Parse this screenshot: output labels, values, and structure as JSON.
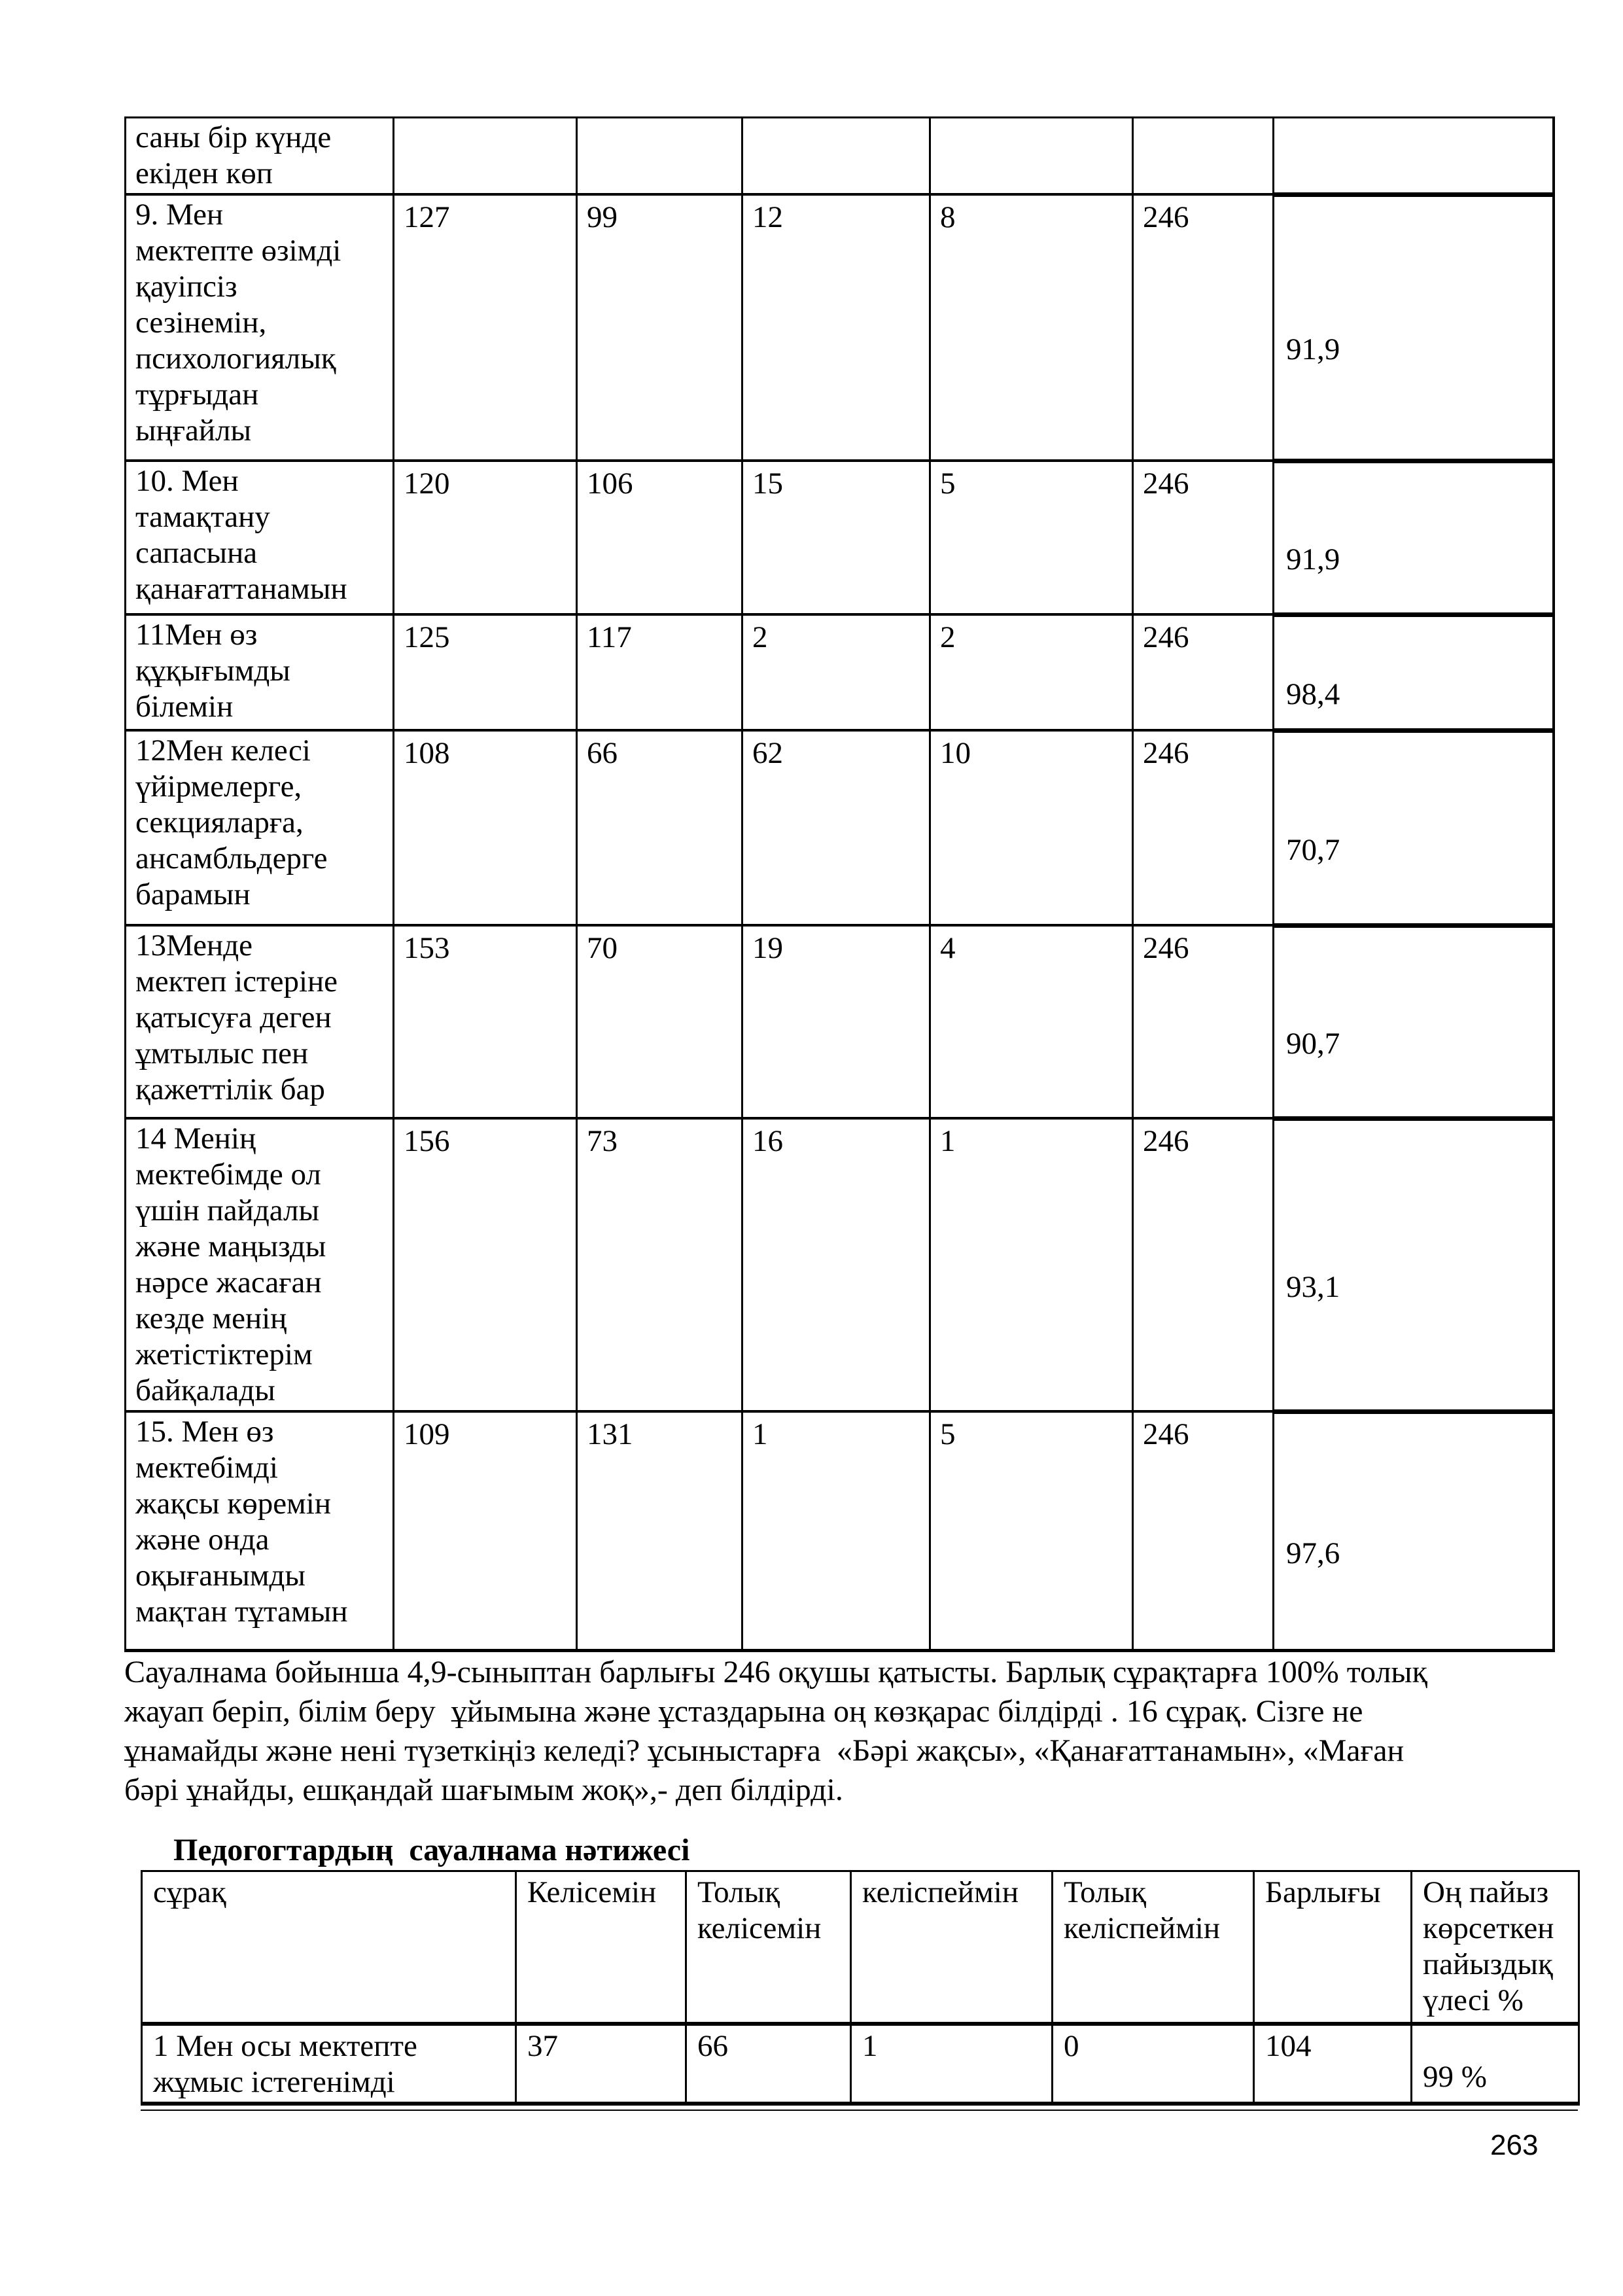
{
  "colors": {
    "text": "#000000",
    "background": "#ffffff",
    "border": "#000000"
  },
  "student_table": {
    "carryover_row": {
      "question": "саны бір күнде\nекіден көп",
      "values": [
        "",
        "",
        "",
        "",
        ""
      ],
      "pct": ""
    },
    "rows": [
      {
        "question": "9. Мен\nмектепте өзімді\nқауіпсіз\nсезінемін,\nпсихологиялық\nтұрғыдан\nыңғайлы",
        "values": [
          "127",
          "99",
          "12",
          "8",
          "246"
        ],
        "pct": "91,9"
      },
      {
        "question": "10. Мен\nтамақтану\nсапасына\nқанағаттанамын",
        "values": [
          "120",
          "106",
          "15",
          "5",
          "246"
        ],
        "pct": "91,9"
      },
      {
        "question": "11Мен өз\nқұқығымды\nбілемін",
        "values": [
          "125",
          "117",
          "2",
          "2",
          "246"
        ],
        "pct": "98,4"
      },
      {
        "question": "12Мен келесі\nүйірмелерге,\nсекцияларға,\nансамбльдерге\nбарамын",
        "values": [
          "108",
          "66",
          "62",
          "10",
          "246"
        ],
        "pct": "70,7"
      },
      {
        "question": "13Менде\nмектеп істеріне\nқатысуға деген\nұмтылыс пен\nқажеттілік бар",
        "values": [
          "153",
          "70",
          "19",
          "4",
          "246"
        ],
        "pct": "90,7"
      },
      {
        "question": "14 Менің\nмектебімде ол\nүшін пайдалы\nжәне маңызды\nнәрсе жасаған\nкезде менің\nжетістіктерім\nбайқалады",
        "values": [
          "156",
          "73",
          "16",
          "1",
          "246"
        ],
        "pct": "93,1"
      },
      {
        "question": "15. Мен өз\nмектебімді\nжақсы көремін\nжәне онда\nоқығанымды\nмақтан тұтамын",
        "values": [
          "109",
          "131",
          "1",
          "5",
          "246"
        ],
        "pct": "97,6"
      }
    ]
  },
  "paragraph": {
    "lines": [
      "Сауалнама бойынша 4,9-сыныптан барлығы 246 оқушы қатысты. Барлық сұрақтарға 100% толық",
      "жауап беріп, білім беру  ұйымына және ұстаздарына оң көзқарас білдірді . 16 сұрақ. Сізге не",
      "ұнамайды және нені түзеткіңіз келеді? ұсыныстарға  «Бәрі жақсы», «Қанағаттанамын», «Маған",
      "бәрі ұнайды, ешқандай шағымым жоқ»,- деп білдірді."
    ]
  },
  "heading": {
    "text": "Педогогтардың  сауалнама нәтижесі"
  },
  "teacher_table": {
    "headers": [
      "сұрақ",
      "Келісемін",
      "Толық\nкелісемін",
      "келіспеймін",
      "Толық\nкеліспеймін",
      "Барлығы",
      "Оң пайыз\nкөрсеткен\nпайыздық\nүлесі %"
    ],
    "rows": [
      {
        "question": "1 Мен осы мектепте\nжұмыс істегенімді",
        "values": [
          "37",
          "66",
          "1",
          "0",
          "104"
        ],
        "pct": "99 %"
      }
    ]
  },
  "page": {
    "number": "263"
  }
}
